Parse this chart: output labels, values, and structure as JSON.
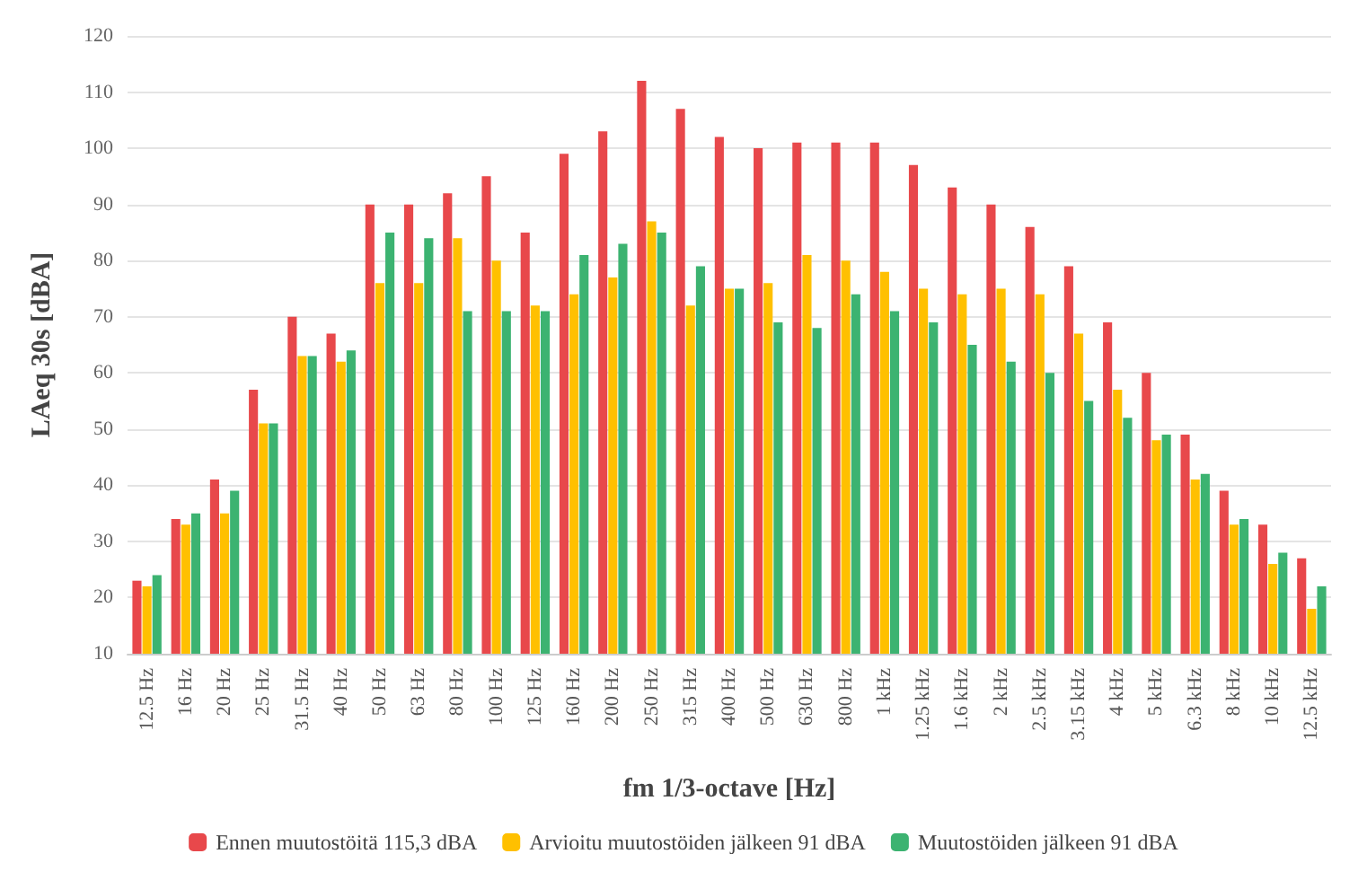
{
  "chart_data": {
    "type": "bar",
    "xlabel": "fm 1/3-octave [Hz]",
    "ylabel": "LAeq 30s [dBA]",
    "categories": [
      "12.5 Hz",
      "16 Hz",
      "20 Hz",
      "25 Hz",
      "31.5 Hz",
      "40 Hz",
      "50 Hz",
      "63 Hz",
      "80 Hz",
      "100 Hz",
      "125 Hz",
      "160 Hz",
      "200 Hz",
      "250 Hz",
      "315 Hz",
      "400 Hz",
      "500 Hz",
      "630 Hz",
      "800 Hz",
      "1 kHz",
      "1.25 kHz",
      "1.6 kHz",
      "2 kHz",
      "2.5 kHz",
      "3.15 kHz",
      "4 kHz",
      "5 kHz",
      "6.3 kHz",
      "8 kHz",
      "10 kHz",
      "12.5 kHz"
    ],
    "series": [
      {
        "name": "Ennen muutostöitä 115,3 dBA",
        "color": "#e8484b",
        "values": [
          23,
          34,
          41,
          57,
          70,
          67,
          90,
          90,
          92,
          95,
          85,
          99,
          103,
          112,
          107,
          102,
          100,
          101,
          101,
          101,
          97,
          93,
          90,
          86,
          79,
          69,
          60,
          49,
          39,
          33,
          27
        ]
      },
      {
        "name": "Arvioitu muutostöiden jälkeen 91 dBA",
        "color": "#ffc000",
        "values": [
          22,
          33,
          35,
          51,
          63,
          62,
          76,
          76,
          84,
          80,
          72,
          74,
          77,
          87,
          72,
          75,
          76,
          81,
          80,
          78,
          75,
          74,
          75,
          74,
          67,
          57,
          48,
          41,
          33,
          26,
          18
        ]
      },
      {
        "name": "Muutostöiden jälkeen 91 dBA",
        "color": "#3cb371",
        "values": [
          24,
          35,
          39,
          51,
          63,
          64,
          85,
          84,
          71,
          71,
          71,
          81,
          83,
          85,
          79,
          75,
          69,
          68,
          74,
          71,
          69,
          65,
          62,
          60,
          55,
          52,
          49,
          42,
          34,
          28,
          22
        ]
      }
    ],
    "ylim": [
      10,
      120
    ],
    "yticks": [
      10,
      20,
      30,
      40,
      50,
      60,
      70,
      80,
      90,
      100,
      110,
      120
    ],
    "grid": "y",
    "legend": "bottom"
  }
}
